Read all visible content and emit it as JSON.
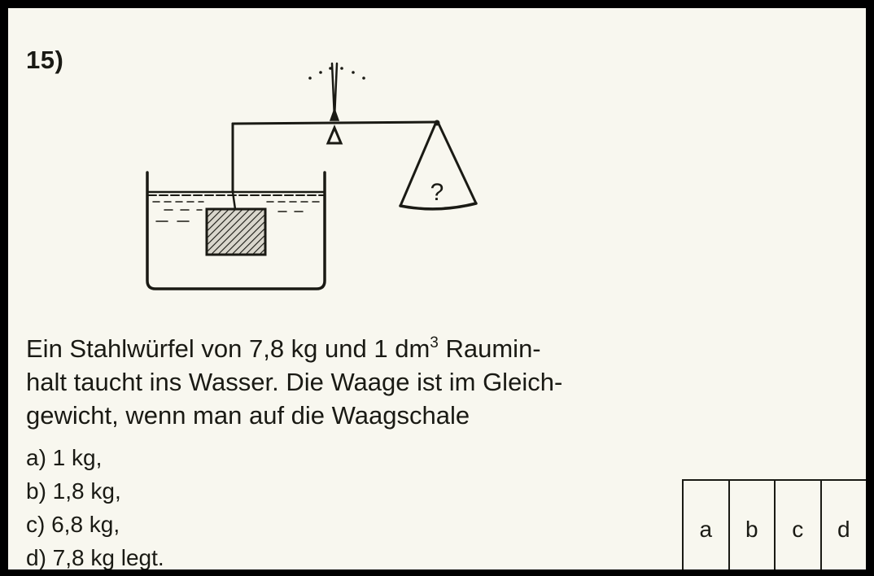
{
  "problem_number": "15)",
  "question": {
    "line1_a": "Ein Stahlwürfel von 7,8 kg und 1 dm",
    "line1_sup": "3",
    "line1_b": " Raumin-",
    "line2": "halt taucht ins Wasser. Die Waage ist im Gleich-",
    "line3": "gewicht, wenn man auf die Waagschale"
  },
  "options": [
    {
      "text": "a) 1 kg,"
    },
    {
      "text": "b) 1,8 kg,"
    },
    {
      "text": "c) 6,8 kg,"
    },
    {
      "text": "d) 7,8 kg legt."
    }
  ],
  "answer_boxes": [
    "a",
    "b",
    "c",
    "d"
  ],
  "figure": {
    "pan_symbol": "?",
    "icons": [
      "balance-scale-icon",
      "water-tank-icon",
      "steel-cube-icon",
      "scale-pan-icon"
    ]
  },
  "colors": {
    "paper": "#f8f7ef",
    "ink": "#1a1a14",
    "frame": "#000000"
  }
}
